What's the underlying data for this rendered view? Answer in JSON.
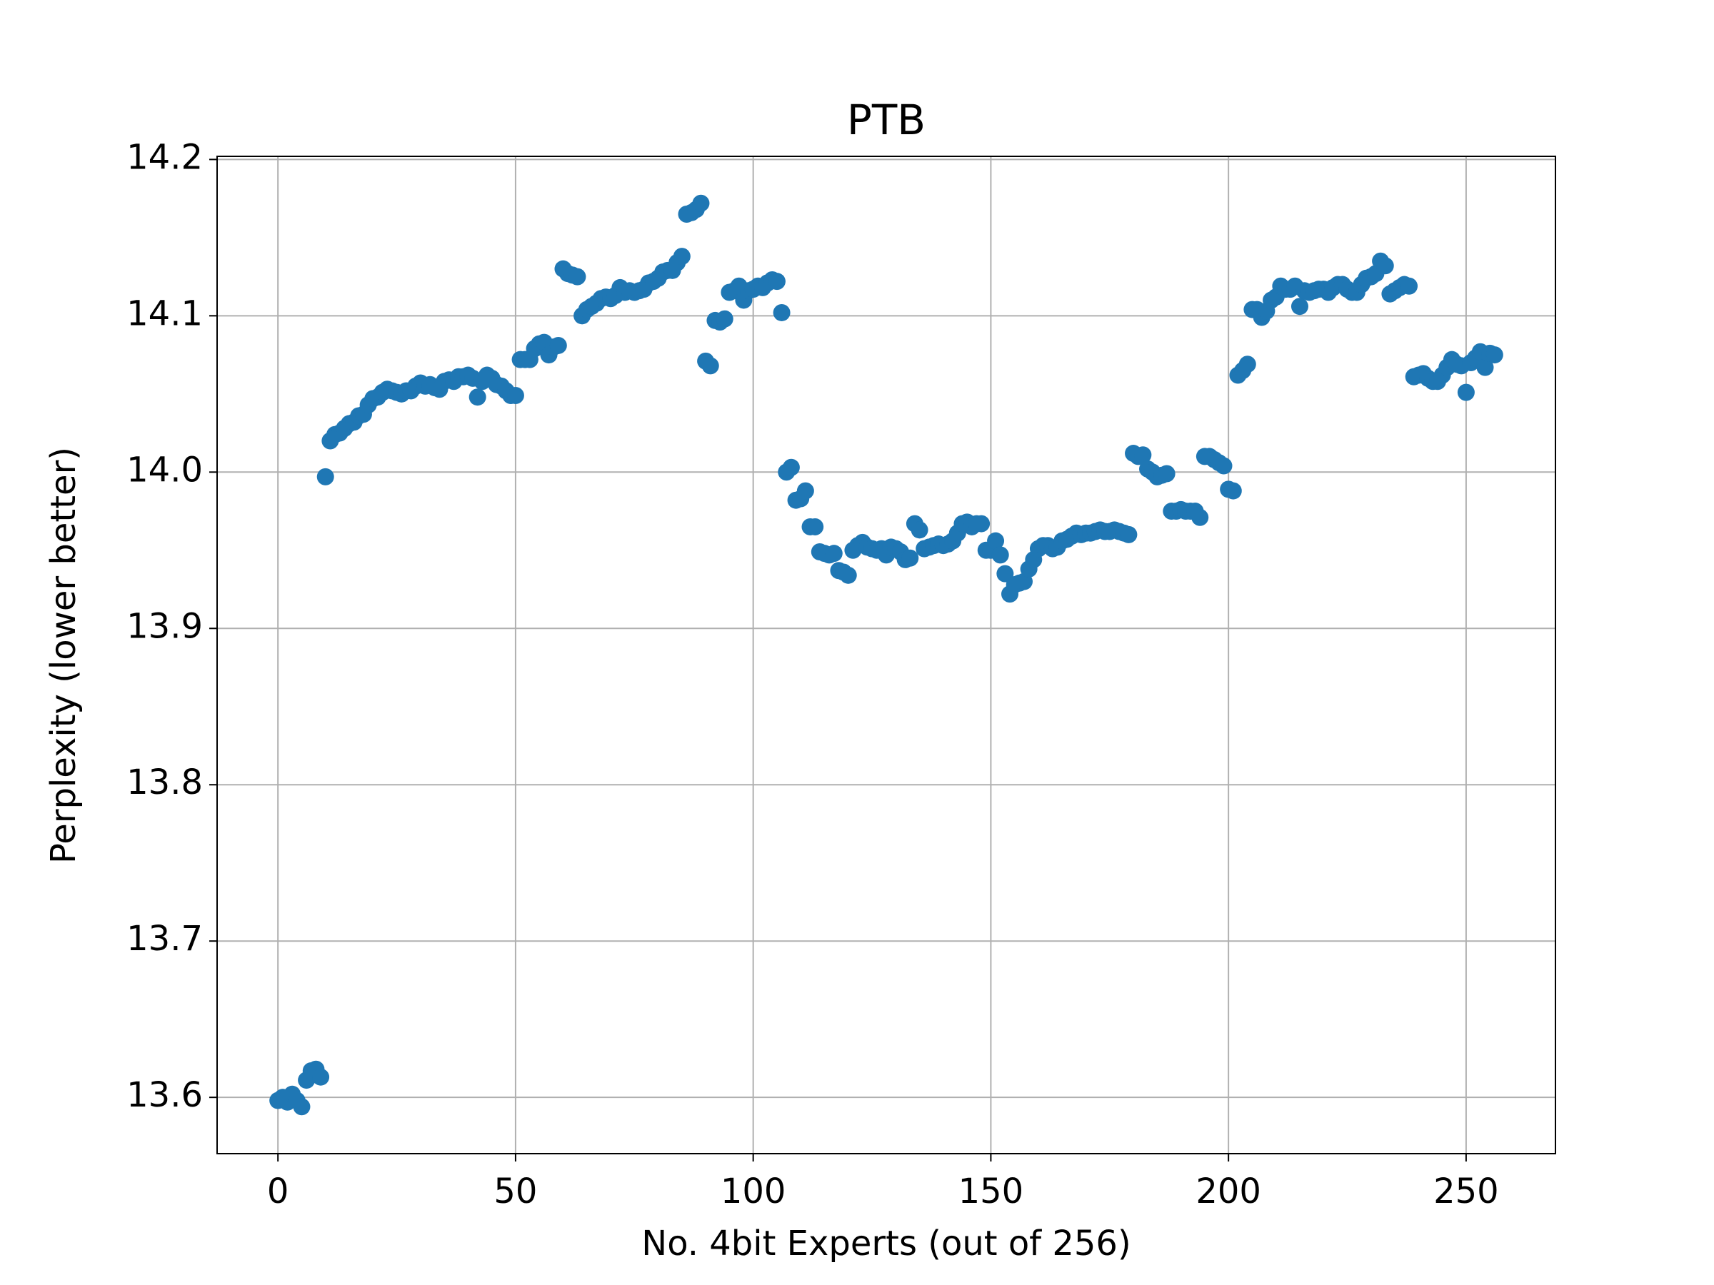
{
  "chart_data": {
    "type": "scatter",
    "title": "PTB",
    "xlabel": "No. 4bit Experts (out of 256)",
    "ylabel": "Perplexity (lower better)",
    "color": "#1f77b4",
    "grid": true,
    "xlim": [
      -12.8,
      268.8
    ],
    "ylim": [
      13.564,
      14.202
    ],
    "xticks": [
      0,
      50,
      100,
      150,
      200,
      250
    ],
    "yticks": [
      13.6,
      13.7,
      13.8,
      13.9,
      {
        "value": 14,
        "label": "14.0"
      },
      14.1,
      14.2
    ],
    "x": [
      0,
      1,
      2,
      3,
      4,
      5,
      6,
      7,
      8,
      9,
      10,
      11,
      12,
      13,
      14,
      15,
      16,
      17,
      18,
      19,
      20,
      21,
      22,
      23,
      24,
      25,
      26,
      27,
      28,
      29,
      30,
      31,
      32,
      33,
      34,
      35,
      36,
      37,
      38,
      39,
      40,
      41,
      42,
      43,
      44,
      45,
      46,
      47,
      48,
      49,
      50,
      51,
      52,
      53,
      54,
      55,
      56,
      57,
      58,
      59,
      60,
      61,
      62,
      63,
      64,
      65,
      66,
      67,
      68,
      69,
      70,
      71,
      72,
      73,
      74,
      75,
      76,
      77,
      78,
      79,
      80,
      81,
      82,
      83,
      84,
      85,
      86,
      87,
      88,
      89,
      90,
      91,
      92,
      93,
      94,
      95,
      96,
      97,
      98,
      99,
      100,
      101,
      102,
      103,
      104,
      105,
      106,
      107,
      108,
      109,
      110,
      111,
      112,
      113,
      114,
      115,
      116,
      117,
      118,
      119,
      120,
      121,
      122,
      123,
      124,
      125,
      126,
      127,
      128,
      129,
      130,
      131,
      132,
      133,
      134,
      135,
      136,
      137,
      138,
      139,
      140,
      141,
      142,
      143,
      144,
      145,
      146,
      147,
      148,
      149,
      150,
      151,
      152,
      153,
      154,
      155,
      156,
      157,
      158,
      159,
      160,
      161,
      162,
      163,
      164,
      165,
      166,
      167,
      168,
      169,
      170,
      171,
      172,
      173,
      174,
      175,
      176,
      177,
      178,
      179,
      180,
      181,
      182,
      183,
      184,
      185,
      186,
      187,
      188,
      189,
      190,
      191,
      192,
      193,
      194,
      195,
      196,
      197,
      198,
      199,
      200,
      201,
      202,
      203,
      204,
      205,
      206,
      207,
      208,
      209,
      210,
      211,
      212,
      213,
      214,
      215,
      216,
      217,
      218,
      219,
      220,
      221,
      222,
      223,
      224,
      225,
      226,
      227,
      228,
      229,
      230,
      231,
      232,
      233,
      234,
      235,
      236,
      237,
      238,
      239,
      240,
      241,
      242,
      243,
      244,
      245,
      246,
      247,
      248,
      249,
      250,
      251,
      252,
      253,
      254,
      255,
      256
    ],
    "values": [
      13.598,
      13.6,
      13.597,
      13.602,
      13.598,
      13.594,
      13.611,
      13.617,
      13.618,
      13.613,
      13.997,
      14.02,
      14.024,
      14.025,
      14.028,
      14.031,
      14.032,
      14.036,
      14.037,
      14.043,
      14.047,
      14.048,
      14.051,
      14.053,
      14.052,
      14.051,
      14.05,
      14.052,
      14.052,
      14.055,
      14.057,
      14.055,
      14.056,
      14.054,
      14.053,
      14.058,
      14.059,
      14.058,
      14.061,
      14.061,
      14.062,
      14.06,
      14.048,
      14.058,
      14.062,
      14.06,
      14.056,
      14.055,
      14.052,
      14.049,
      14.049,
      14.072,
      14.072,
      14.072,
      14.079,
      14.082,
      14.083,
      14.075,
      14.08,
      14.081,
      14.13,
      14.127,
      14.126,
      14.125,
      14.1,
      14.104,
      14.106,
      14.108,
      14.111,
      14.112,
      14.111,
      14.113,
      14.118,
      14.115,
      14.116,
      14.115,
      14.116,
      14.117,
      14.121,
      14.122,
      14.124,
      14.128,
      14.129,
      14.129,
      14.134,
      14.138,
      14.165,
      14.166,
      14.168,
      14.172,
      14.071,
      14.068,
      14.097,
      14.096,
      14.098,
      14.115,
      14.116,
      14.119,
      14.11,
      14.116,
      14.117,
      14.119,
      14.118,
      14.121,
      14.123,
      14.122,
      14.102,
      14.0,
      14.003,
      13.982,
      13.983,
      13.988,
      13.965,
      13.965,
      13.949,
      13.948,
      13.947,
      13.948,
      13.937,
      13.936,
      13.934,
      13.95,
      13.953,
      13.955,
      13.952,
      13.951,
      13.95,
      13.951,
      13.947,
      13.952,
      13.951,
      13.949,
      13.944,
      13.945,
      13.967,
      13.963,
      13.951,
      13.952,
      13.953,
      13.954,
      13.953,
      13.954,
      13.956,
      13.961,
      13.967,
      13.968,
      13.965,
      13.967,
      13.967,
      13.95,
      13.95,
      13.956,
      13.947,
      13.935,
      13.922,
      13.928,
      13.929,
      13.93,
      13.938,
      13.944,
      13.951,
      13.953,
      13.953,
      13.951,
      13.952,
      13.956,
      13.957,
      13.959,
      13.961,
      13.96,
      13.961,
      13.961,
      13.962,
      13.963,
      13.962,
      13.962,
      13.963,
      13.962,
      13.961,
      13.96,
      14.012,
      14.01,
      14.011,
      14.002,
      14.0,
      13.997,
      13.998,
      13.999,
      13.975,
      13.975,
      13.976,
      13.975,
      13.975,
      13.975,
      13.971,
      14.01,
      14.01,
      14.008,
      14.006,
      14.004,
      13.989,
      13.988,
      14.062,
      14.065,
      14.069,
      14.104,
      14.104,
      14.099,
      14.103,
      14.11,
      14.112,
      14.119,
      14.117,
      14.117,
      14.119,
      14.106,
      14.116,
      14.115,
      14.116,
      14.117,
      14.117,
      14.115,
      14.118,
      14.12,
      14.12,
      14.117,
      14.115,
      14.115,
      14.12,
      14.124,
      14.125,
      14.127,
      14.135,
      14.132,
      14.114,
      14.116,
      14.118,
      14.12,
      14.119,
      14.061,
      14.062,
      14.063,
      14.06,
      14.058,
      14.058,
      14.062,
      14.067,
      14.072,
      14.069,
      14.068,
      14.051,
      14.07,
      14.073,
      14.077,
      14.067,
      14.076,
      14.075
    ]
  }
}
